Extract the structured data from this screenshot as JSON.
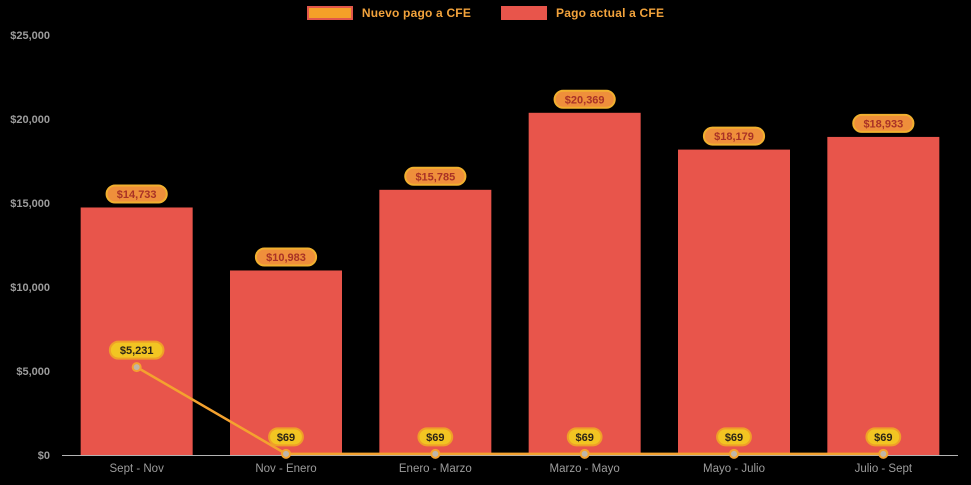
{
  "page": {
    "background": "#000000"
  },
  "legend": {
    "position": "top",
    "items": [
      {
        "label": "Nuevo pago a CFE",
        "swatch_fill": "#f5a028",
        "swatch_border": "#e2574b",
        "text_color": "#f2a33c"
      },
      {
        "label": "Pago actual a CFE",
        "swatch_fill": "#e8554b",
        "swatch_border": "#e8554b",
        "text_color": "#f2a33c"
      }
    ]
  },
  "chart_data": {
    "type": "bar",
    "title": "",
    "xlabel": "",
    "ylabel": "",
    "grid": false,
    "legend_position": "top",
    "categories": [
      "Sept - Nov",
      "Nov - Enero",
      "Enero - Marzo",
      "Marzo - Mayo",
      "Mayo - Julio",
      "Julio - Sept"
    ],
    "series": [
      {
        "name": "Pago actual a CFE",
        "type": "bar",
        "color": "#e8554b",
        "values": [
          14733,
          10983,
          15785,
          20369,
          18179,
          18933
        ],
        "labels": [
          "$14,733",
          "$10,983",
          "$15,785",
          "$20,369",
          "$18,179",
          "$18,933"
        ]
      },
      {
        "name": "Nuevo pago a CFE",
        "type": "line",
        "color": "#f4a22f",
        "values": [
          5231,
          69,
          69,
          69,
          69,
          69
        ],
        "labels": [
          "$5,231",
          "$69",
          "$69",
          "$69",
          "$69",
          "$69"
        ]
      }
    ],
    "ylim": [
      0,
      25000
    ],
    "yticks": [
      {
        "value": 0,
        "label": "$0"
      },
      {
        "value": 5000,
        "label": "$5,000"
      },
      {
        "value": 10000,
        "label": "$10,000"
      },
      {
        "value": 15000,
        "label": "$15,000"
      },
      {
        "value": 20000,
        "label": "$20,000"
      },
      {
        "value": 25000,
        "label": "$25,000"
      }
    ],
    "axis_color": "#9c9c9c",
    "baseline_color": "#b3b3b3",
    "bar_label_style": {
      "fill": "#ef8f3b",
      "border": "#f1b02f",
      "text": "#a93226"
    },
    "line_label_style": {
      "fill": "#f2c522",
      "border": "#ef9f28",
      "text": "#2b2417"
    },
    "marker": {
      "fill": "#bfb6a8",
      "stroke": "#f4a22f"
    }
  }
}
